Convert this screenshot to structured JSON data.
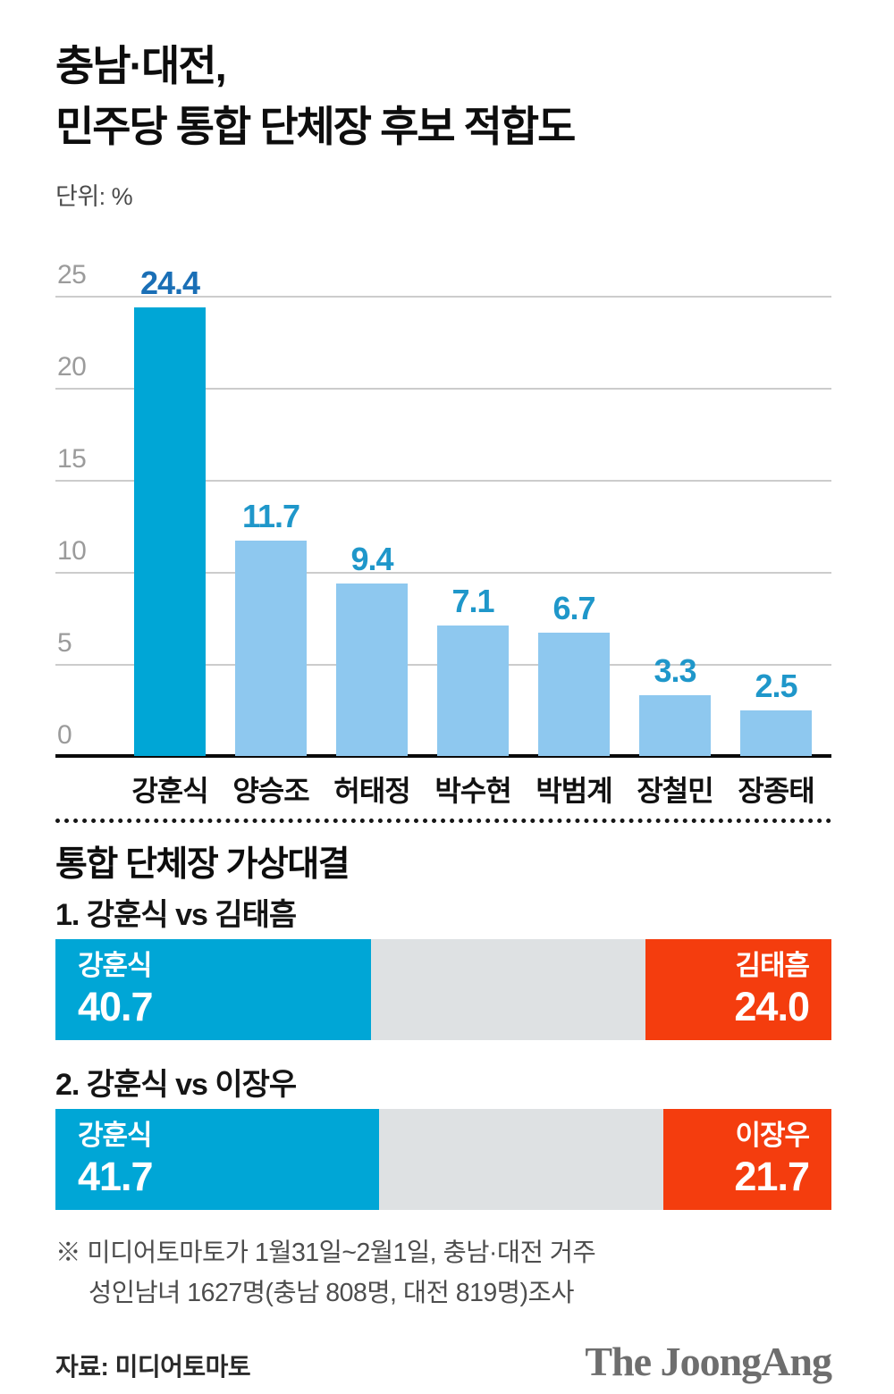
{
  "header": {
    "title_line1": "충남·대전,",
    "title_line2": "민주당 통합 단체장 후보 적합도",
    "unit_label": "단위: %"
  },
  "colors": {
    "highlight_bar": "#00A6D6",
    "light_bar": "#8EC8EF",
    "value_label": "#1F97CA",
    "value_label_highlight": "#1A6FB6",
    "grid_line": "#CCCCCC",
    "axis_line": "#0A0A0A",
    "tick_label": "#9B9B9B",
    "win_segment": "#00A6D6",
    "lose_segment": "#F43D0E",
    "neutral_segment": "#DEE1E3"
  },
  "chart_data": [
    {
      "type": "bar",
      "title": "충남·대전, 민주당 통합 단체장 후보 적합도",
      "xlabel": "",
      "ylabel": "단위: %",
      "categories": [
        "강훈식",
        "양승조",
        "허태정",
        "박수현",
        "박범계",
        "장철민",
        "장종태"
      ],
      "values": [
        24.4,
        11.7,
        9.4,
        7.1,
        6.7,
        3.3,
        2.5
      ],
      "value_labels": [
        "24.4",
        "11.7",
        "9.4",
        "7.1",
        "6.7",
        "3.3",
        "2.5"
      ],
      "highlight_index": 0,
      "ylim": [
        0,
        25
      ],
      "yticks": [
        25,
        20,
        15,
        10,
        5,
        0
      ],
      "grid": true,
      "legend": false
    },
    {
      "type": "bar",
      "title": "1. 강훈식 vs 김태흠",
      "orientation": "horizontal-stacked",
      "categories": [
        "강훈식",
        "김태흠"
      ],
      "values": [
        40.7,
        24.0
      ],
      "scale_total": 100
    },
    {
      "type": "bar",
      "title": "2. 강훈식 vs 이장우",
      "orientation": "horizontal-stacked",
      "categories": [
        "강훈식",
        "이장우"
      ],
      "values": [
        41.7,
        21.7
      ],
      "scale_total": 100
    }
  ],
  "versus": {
    "heading": "통합 단체장 가상대결",
    "matchups": [
      {
        "label": "1. 강훈식 vs 김태흠",
        "left_name": "강훈식",
        "left_value": 40.7,
        "left_label": "40.7",
        "right_name": "김태흠",
        "right_value": 24.0,
        "right_label": "24.0"
      },
      {
        "label": "2. 강훈식 vs 이장우",
        "left_name": "강훈식",
        "left_value": 41.7,
        "left_label": "41.7",
        "right_name": "이장우",
        "right_value": 21.7,
        "right_label": "21.7"
      }
    ]
  },
  "footnote": {
    "line1": "※ 미디어토마토가 1월31일~2월1일, 충남·대전 거주",
    "line2": "성인남녀 1627명(충남 808명, 대전 819명)조사"
  },
  "footer": {
    "source": "자료: 미디어토마토",
    "logo": "The JoongAng"
  }
}
